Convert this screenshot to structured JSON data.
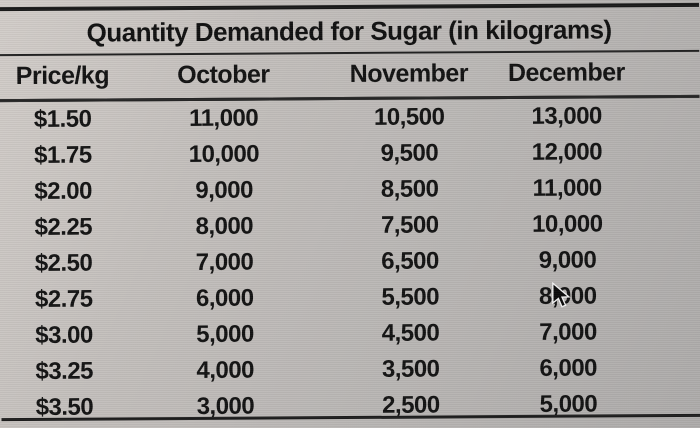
{
  "page": {
    "title": "Quantity Demanded for Sugar (in kilograms)"
  },
  "table": {
    "columns": [
      "Price/kg",
      "October",
      "November",
      "December"
    ],
    "rows": [
      [
        "$1.50",
        "11,000",
        "10,500",
        "13,000"
      ],
      [
        "$1.75",
        "10,000",
        "9,500",
        "12,000"
      ],
      [
        "$2.00",
        "9,000",
        "8,500",
        "11,000"
      ],
      [
        "$2.25",
        "8,000",
        "7,500",
        "10,000"
      ],
      [
        "$2.50",
        "7,000",
        "6,500",
        "9,000"
      ],
      [
        "$2.75",
        "6,000",
        "5,500",
        "8,000"
      ],
      [
        "$3.00",
        "5,000",
        "4,500",
        "7,000"
      ],
      [
        "$3.25",
        "4,000",
        "3,500",
        "6,000"
      ],
      [
        "$3.50",
        "3,000",
        "2,500",
        "5,000"
      ]
    ]
  },
  "icons": {
    "mouse_cursor": "arrow-pointer"
  },
  "colors": {
    "background": "#bdbab7",
    "text": "#121212",
    "rule_lines": "#1d1d1d"
  },
  "chart_data": {
    "type": "table",
    "title": "Quantity Demanded for Sugar (in kilograms)",
    "columns": [
      "Price/kg",
      "October",
      "November",
      "December"
    ],
    "rows": [
      [
        "$1.50",
        11000,
        10500,
        13000
      ],
      [
        "$1.75",
        10000,
        9500,
        12000
      ],
      [
        "$2.00",
        9000,
        8500,
        11000
      ],
      [
        "$2.25",
        8000,
        7500,
        10000
      ],
      [
        "$2.50",
        7000,
        6500,
        9000
      ],
      [
        "$2.75",
        6000,
        5500,
        8000
      ],
      [
        "$3.00",
        5000,
        4500,
        7000
      ],
      [
        "$3.25",
        4000,
        3500,
        6000
      ],
      [
        "$3.50",
        3000,
        2500,
        5000
      ]
    ]
  }
}
